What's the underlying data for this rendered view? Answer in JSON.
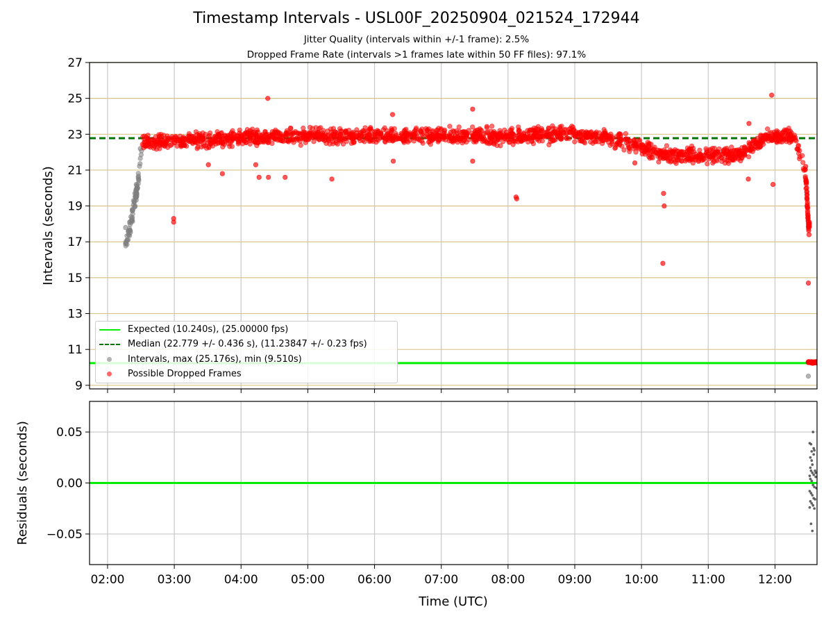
{
  "title": "Timestamp Intervals - USL00F_20250904_021524_172944",
  "subtitle_lines": [
    "Jitter Quality (intervals within +/-1 frame): 2.5%",
    "Dropped Frame Rate (intervals >1 frames late within 50 FF files): 97.1%"
  ],
  "colors": {
    "expected": "#00ee00",
    "median": "#007700",
    "intervals": "#808080",
    "dropped": "#ff0000",
    "hgrid_top": "#d8c48a",
    "grid": "#c8c8c8"
  },
  "legend": {
    "expected": "Expected (10.240s), (25.00000 fps)",
    "median": "Median (22.779 +/- 0.436 s), (11.23847 +/- 0.23 fps)",
    "intervals": "Intervals, max (25.176s), min (9.510s)",
    "dropped": "Possible Dropped Frames"
  },
  "chart_data": [
    {
      "type": "scatter",
      "title": "",
      "xlabel": "",
      "ylabel": "Intervals (seconds)",
      "xlim": [
        1.73,
        12.63
      ],
      "ylim": [
        8.8,
        27
      ],
      "yticks": [
        9,
        11,
        13,
        15,
        17,
        19,
        21,
        23,
        25,
        27
      ],
      "xticks": [
        2,
        3,
        4,
        5,
        6,
        7,
        8,
        9,
        10,
        11,
        12
      ],
      "xtick_labels": [
        "02:00",
        "03:00",
        "04:00",
        "05:00",
        "06:00",
        "07:00",
        "08:00",
        "09:00",
        "10:00",
        "11:00",
        "12:00"
      ],
      "grid": true,
      "legend_position": "lower-left",
      "reference_lines": [
        {
          "name": "Expected (10.240s), (25.00000 fps)",
          "y": 10.24,
          "style": "solid"
        },
        {
          "name": "Median (22.779 +/- 0.436 s), (11.23847 +/- 0.23 fps)",
          "y": 22.779,
          "style": "dashed"
        }
      ],
      "series": [
        {
          "name": "Intervals, max (25.176s), min (9.510s)",
          "trend": [
            [
              2.28,
              16.9
            ],
            [
              2.32,
              17.4
            ],
            [
              2.36,
              18.2
            ],
            [
              2.4,
              19.0
            ],
            [
              2.44,
              19.9
            ],
            [
              2.48,
              21.0
            ],
            [
              2.52,
              22.5
            ]
          ],
          "points": [
            [
              2.27,
              16.9
            ],
            [
              2.27,
              17.8
            ],
            [
              2.29,
              17.1
            ],
            [
              2.31,
              17.6
            ],
            [
              2.33,
              18.1
            ],
            [
              2.35,
              18.4
            ],
            [
              2.37,
              18.8
            ],
            [
              2.39,
              19.3
            ],
            [
              2.41,
              19.7
            ],
            [
              2.43,
              20.2
            ],
            [
              2.46,
              20.6
            ],
            [
              2.49,
              22.2
            ],
            [
              12.5,
              9.51
            ]
          ]
        },
        {
          "name": "Possible Dropped Frames",
          "trend": [
            [
              2.52,
              22.6
            ],
            [
              3.0,
              22.6
            ],
            [
              4.0,
              22.8
            ],
            [
              5.0,
              22.9
            ],
            [
              6.0,
              22.9
            ],
            [
              7.0,
              22.9
            ],
            [
              8.0,
              22.9
            ],
            [
              9.0,
              23.0
            ],
            [
              9.5,
              22.8
            ],
            [
              9.9,
              22.4
            ],
            [
              10.2,
              22.0
            ],
            [
              10.5,
              21.8
            ],
            [
              11.0,
              21.9
            ],
            [
              11.4,
              21.8
            ],
            [
              11.6,
              22.2
            ],
            [
              11.9,
              22.9
            ],
            [
              12.3,
              22.8
            ],
            [
              12.45,
              21.0
            ],
            [
              12.48,
              19.5
            ],
            [
              12.5,
              17.9
            ]
          ],
          "points": [
            [
              2.99,
              18.3
            ],
            [
              2.99,
              18.1
            ],
            [
              4.4,
              25.0
            ],
            [
              6.27,
              24.1
            ],
            [
              7.47,
              24.4
            ],
            [
              11.61,
              23.6
            ],
            [
              11.95,
              25.18
            ],
            [
              4.22,
              21.3
            ],
            [
              4.27,
              20.6
            ],
            [
              4.41,
              20.6
            ],
            [
              4.66,
              20.6
            ],
            [
              5.36,
              20.5
            ],
            [
              3.51,
              21.3
            ],
            [
              3.72,
              20.8
            ],
            [
              6.28,
              21.5
            ],
            [
              7.47,
              21.5
            ],
            [
              8.12,
              19.5
            ],
            [
              8.13,
              19.4
            ],
            [
              10.33,
              19.7
            ],
            [
              10.34,
              19.0
            ],
            [
              10.32,
              15.8
            ],
            [
              11.6,
              20.5
            ],
            [
              11.97,
              20.2
            ],
            [
              9.9,
              21.4
            ],
            [
              12.5,
              14.7
            ],
            [
              12.5,
              10.27
            ],
            [
              12.56,
              10.27
            ],
            [
              12.6,
              10.3
            ],
            [
              12.48,
              19.0
            ],
            [
              12.5,
              18.0
            ],
            [
              12.51,
              17.4
            ],
            [
              12.47,
              20.3
            ],
            [
              12.46,
              21.2
            ]
          ]
        }
      ]
    },
    {
      "type": "scatter",
      "title": "",
      "xlabel": "Time (UTC)",
      "ylabel": "Residuals (seconds)",
      "xlim": [
        1.73,
        12.63
      ],
      "ylim": [
        -0.08,
        0.08
      ],
      "yticks": [
        -0.05,
        0.0,
        0.05
      ],
      "ytick_labels": [
        "−0.05",
        "0.00",
        "0.05"
      ],
      "xticks": [
        2,
        3,
        4,
        5,
        6,
        7,
        8,
        9,
        10,
        11,
        12
      ],
      "xtick_labels": [
        "02:00",
        "03:00",
        "04:00",
        "05:00",
        "06:00",
        "07:00",
        "08:00",
        "09:00",
        "10:00",
        "11:00",
        "12:00"
      ],
      "grid": true,
      "reference_lines": [
        {
          "y": 0.0,
          "style": "solid"
        }
      ],
      "series": [
        {
          "name": "Residuals",
          "points": [
            [
              12.52,
              0.039
            ],
            [
              12.54,
              0.038
            ],
            [
              12.55,
              0.031
            ],
            [
              12.57,
              0.05
            ],
            [
              12.58,
              0.034
            ],
            [
              12.59,
              0.032
            ],
            [
              12.53,
              0.025
            ],
            [
              12.55,
              0.022
            ],
            [
              12.56,
              0.018
            ],
            [
              12.53,
              0.015
            ],
            [
              12.54,
              0.012
            ],
            [
              12.56,
              0.01
            ],
            [
              12.58,
              0.008
            ],
            [
              12.6,
              0.012
            ],
            [
              12.61,
              0.006
            ],
            [
              12.53,
              0.004
            ],
            [
              12.55,
              0.002
            ],
            [
              12.57,
              -0.002
            ],
            [
              12.59,
              -0.004
            ],
            [
              12.52,
              -0.008
            ],
            [
              12.54,
              -0.01
            ],
            [
              12.56,
              -0.012
            ],
            [
              12.58,
              -0.015
            ],
            [
              12.6,
              -0.016
            ],
            [
              12.53,
              -0.018
            ],
            [
              12.55,
              -0.02
            ],
            [
              12.57,
              -0.022
            ],
            [
              12.52,
              -0.024
            ],
            [
              12.59,
              -0.025
            ],
            [
              12.54,
              -0.04
            ],
            [
              12.56,
              -0.047
            ],
            [
              12.61,
              0.01
            ],
            [
              12.62,
              -0.005
            ],
            [
              12.52,
              0.007
            ],
            [
              12.58,
              0.028
            ]
          ]
        }
      ]
    }
  ]
}
